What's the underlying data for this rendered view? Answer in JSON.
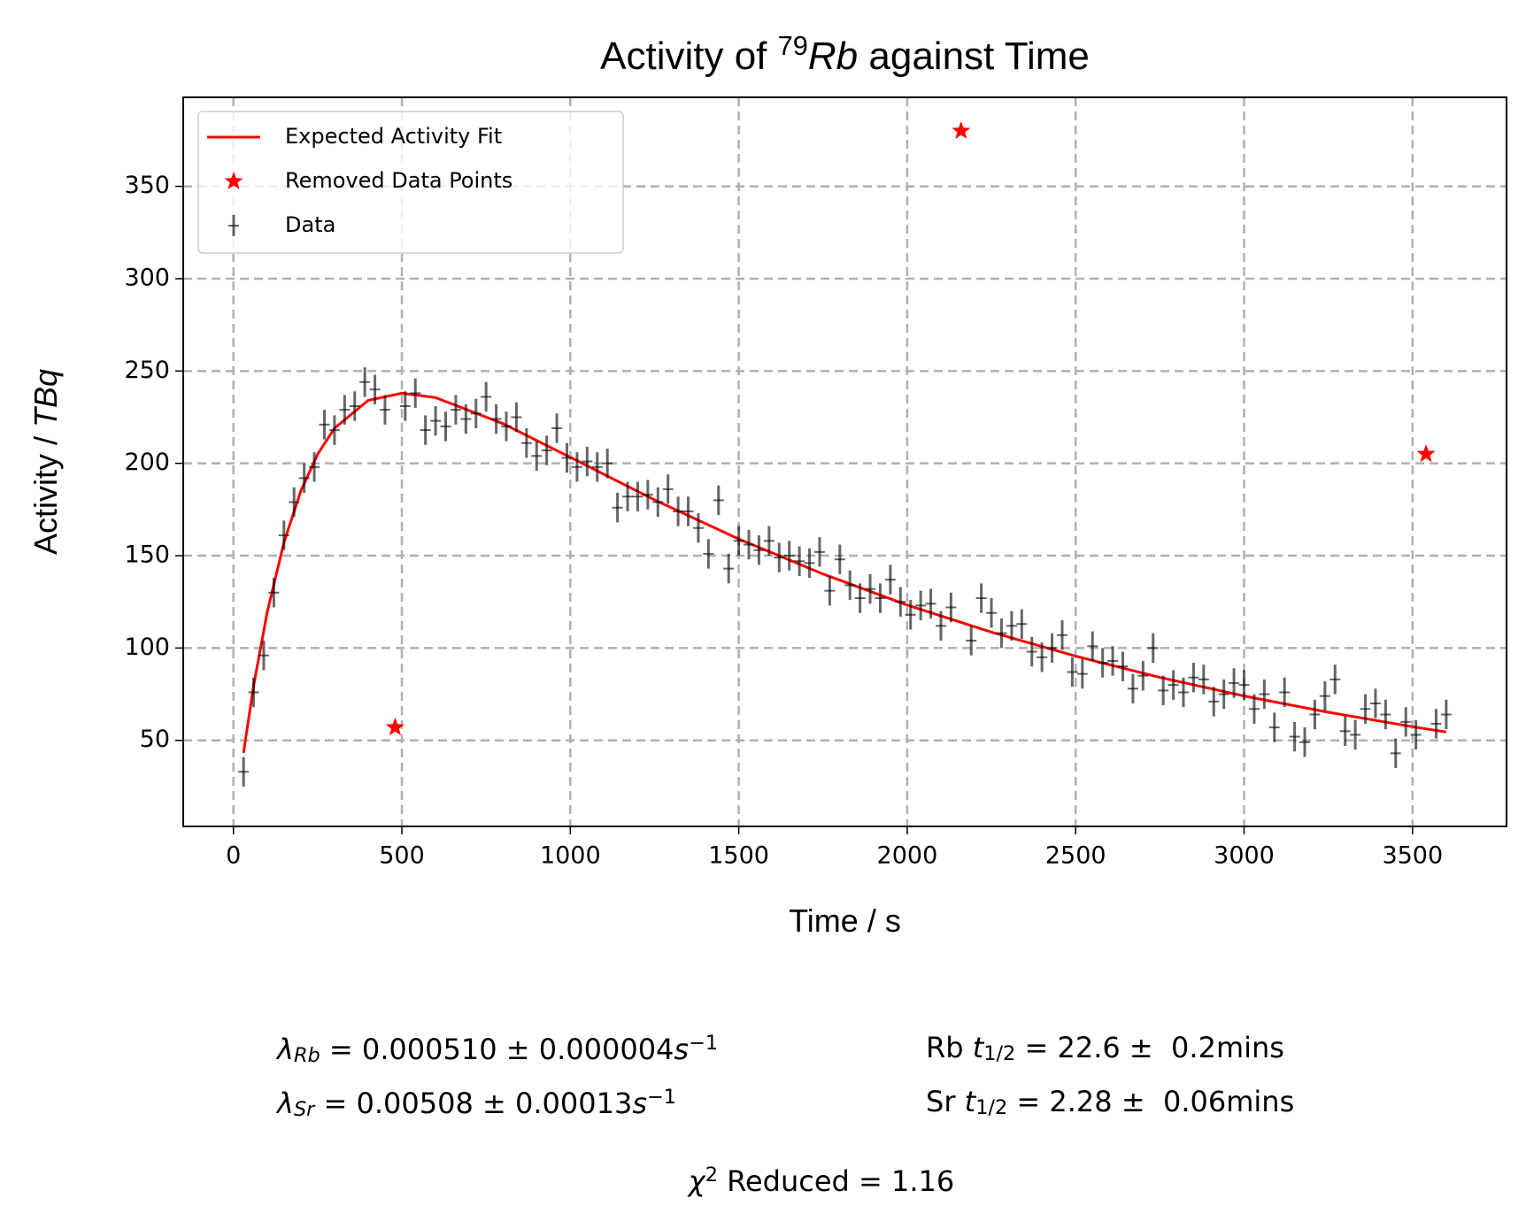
{
  "chart_data": {
    "type": "errorbar",
    "title": {
      "parts": [
        {
          "text": "Activity of "
        },
        {
          "text": "79",
          "style": "sup"
        },
        {
          "text": "Rb",
          "style": "italic"
        },
        {
          "text": " against Time"
        }
      ]
    },
    "xlabel": {
      "parts": [
        {
          "text": "Time / s"
        }
      ]
    },
    "ylabel": {
      "parts": [
        {
          "text": "Activity / "
        },
        {
          "text": "TBq",
          "style": "italic"
        }
      ]
    },
    "xlim": [
      -149,
      3779
    ],
    "ylim": [
      3.4,
      398.2
    ],
    "xticks": [
      0,
      500,
      1000,
      1500,
      2000,
      2500,
      3000,
      3500
    ],
    "yticks": [
      50,
      100,
      150,
      200,
      250,
      300,
      350
    ],
    "grid": true,
    "legend": "upper left",
    "series": [
      {
        "name": "Expected Activity Fit",
        "kind": "line",
        "color": "#ff0000",
        "x": [
          30,
          60,
          100,
          150,
          200,
          250,
          300,
          400,
          500,
          600,
          800,
          1000,
          1250,
          1500,
          1750,
          2000,
          2250,
          2500,
          2750,
          3000,
          3250,
          3500,
          3600
        ],
        "values": [
          43.2,
          79.5,
          119.2,
          157.2,
          185.0,
          205.0,
          219.0,
          234.1,
          238.0,
          235.6,
          221.5,
          203.3,
          180.2,
          159.0,
          140.1,
          123.3,
          108.6,
          95.6,
          84.1,
          74.0,
          65.2,
          57.4,
          54.5
        ]
      },
      {
        "name": "Removed Data Points",
        "kind": "star",
        "color": "#ff0000",
        "x": [
          480,
          2160,
          3540
        ],
        "values": [
          57,
          380,
          205
        ]
      },
      {
        "name": "Data",
        "kind": "errorbar",
        "color": "#000000",
        "alpha": 0.6,
        "yerr": 8,
        "x": [
          30,
          60,
          90,
          120,
          150,
          180,
          210,
          240,
          270,
          300,
          330,
          360,
          390,
          420,
          450,
          510,
          540,
          570,
          600,
          630,
          660,
          690,
          720,
          750,
          780,
          810,
          840,
          870,
          900,
          930,
          960,
          990,
          1020,
          1050,
          1080,
          1110,
          1140,
          1170,
          1200,
          1230,
          1260,
          1290,
          1320,
          1350,
          1380,
          1410,
          1440,
          1470,
          1500,
          1530,
          1560,
          1590,
          1620,
          1650,
          1680,
          1710,
          1740,
          1770,
          1800,
          1830,
          1860,
          1890,
          1920,
          1950,
          1980,
          2010,
          2040,
          2070,
          2100,
          2130,
          2190,
          2220,
          2250,
          2280,
          2310,
          2340,
          2370,
          2400,
          2430,
          2460,
          2490,
          2520,
          2550,
          2580,
          2610,
          2640,
          2670,
          2700,
          2730,
          2760,
          2790,
          2820,
          2850,
          2880,
          2910,
          2940,
          2970,
          3000,
          3030,
          3060,
          3090,
          3120,
          3150,
          3180,
          3210,
          3240,
          3270,
          3300,
          3330,
          3360,
          3390,
          3420,
          3450,
          3480,
          3510,
          3570,
          3600
        ],
        "values": [
          33,
          76,
          96,
          130,
          161,
          179,
          192,
          198,
          221,
          218,
          229,
          231,
          244,
          240,
          229,
          231,
          238,
          218,
          223,
          220,
          229,
          224,
          227,
          236,
          224,
          220,
          225,
          211,
          204,
          207,
          219,
          203,
          198,
          201,
          198,
          200,
          176,
          182,
          182,
          183,
          179,
          186,
          174,
          174,
          165,
          151,
          180,
          143,
          158,
          156,
          153,
          158,
          149,
          150,
          147,
          146,
          152,
          131,
          148,
          134,
          127,
          132,
          127,
          137,
          125,
          118,
          123,
          124,
          112,
          122,
          104,
          127,
          119,
          108,
          112,
          113,
          98,
          95,
          100,
          107,
          87,
          86,
          101,
          92,
          93,
          90,
          78,
          85,
          100,
          77,
          80,
          76,
          84,
          83,
          71,
          75,
          81,
          80,
          67,
          75,
          57,
          76,
          52,
          49,
          64,
          74,
          83,
          55,
          53,
          67,
          70,
          64,
          43,
          60,
          53,
          59,
          64
        ]
      }
    ],
    "annotations": [
      {
        "parts": [
          {
            "text": "λ",
            "style": "italic"
          },
          {
            "text": "Rb",
            "style": "sub-italic"
          },
          {
            "text": " = 0.000510 ± 0.000004"
          },
          {
            "text": "s",
            "style": "italic"
          },
          {
            "text": "−1",
            "style": "sup"
          }
        ]
      },
      {
        "parts": [
          {
            "text": "λ",
            "style": "italic"
          },
          {
            "text": "Sr",
            "style": "sub-italic"
          },
          {
            "text": " = 0.00508 ± 0.00013"
          },
          {
            "text": "s",
            "style": "italic"
          },
          {
            "text": "−1",
            "style": "sup"
          }
        ]
      },
      {
        "parts": [
          {
            "text": "Rb "
          },
          {
            "text": "t",
            "style": "italic"
          },
          {
            "text": "1/2",
            "style": "sub"
          },
          {
            "text": " = 22.6 ±  0.2mins"
          }
        ]
      },
      {
        "parts": [
          {
            "text": "Sr "
          },
          {
            "text": "t",
            "style": "italic"
          },
          {
            "text": "1/2",
            "style": "sub"
          },
          {
            "text": " = 2.28 ±  0.06mins"
          }
        ]
      },
      {
        "parts": [
          {
            "text": "χ",
            "style": "italic"
          },
          {
            "text": "2",
            "style": "sup"
          },
          {
            "text": " Reduced = 1.16"
          }
        ]
      }
    ]
  }
}
